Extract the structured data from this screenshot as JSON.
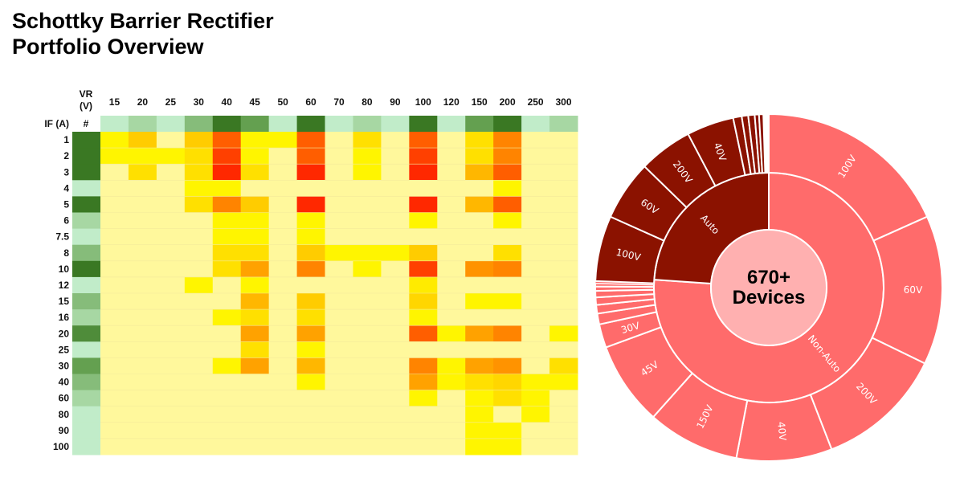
{
  "title": {
    "line1": "Schottky Barrier Rectifier",
    "line2": "Portfolio Overview"
  },
  "chart_data": [
    {
      "type": "heatmap",
      "corner_label_top": "VR\n(V)",
      "vr_label_line1": "VR",
      "vr_label_line2": "(V)",
      "if_label": "IF (A)",
      "count_label": "#",
      "columns": [
        "15",
        "20",
        "25",
        "30",
        "40",
        "45",
        "50",
        "60",
        "70",
        "80",
        "90",
        "100",
        "120",
        "150",
        "200",
        "250",
        "300"
      ],
      "rows": [
        "1",
        "2",
        "3",
        "4",
        "5",
        "6",
        "7.5",
        "8",
        "10",
        "12",
        "15",
        "16",
        "20",
        "25",
        "30",
        "40",
        "60",
        "80",
        "90",
        "100"
      ],
      "intensity_scale": {
        "min": 0,
        "max": 8,
        "colors": [
          "#fff89c",
          "#fff500",
          "#ffe000",
          "#ffcc00",
          "#ffa200",
          "#ff8400",
          "#ff5e00",
          "#ff4000",
          "#ff2800"
        ]
      },
      "count_scale": {
        "min": 0,
        "max": 3,
        "colors": [
          "#c1ecc9",
          "#a7d7a3",
          "#64a050",
          "#3a7823"
        ]
      },
      "column_counts": [
        0,
        1,
        0,
        1.5,
        3,
        2,
        0,
        3,
        0,
        1,
        0,
        3,
        0,
        2,
        3,
        0,
        1
      ],
      "row_counts": [
        3,
        3,
        3,
        0,
        3,
        1,
        0,
        1.5,
        3,
        0,
        1.5,
        1,
        2.5,
        0,
        2,
        1.5,
        1,
        0,
        0,
        0
      ],
      "values": [
        [
          1,
          3,
          0,
          3,
          6,
          1,
          1,
          6,
          0,
          2,
          0,
          6,
          0,
          2,
          5,
          0,
          0
        ],
        [
          1,
          1,
          1,
          2,
          7,
          1,
          0,
          6,
          0,
          1,
          0,
          7,
          0,
          2,
          5,
          0,
          0
        ],
        [
          0,
          2,
          0,
          2,
          8,
          2,
          0,
          8,
          0,
          1,
          0,
          8,
          0,
          3.5,
          6,
          0,
          0
        ],
        [
          0,
          0,
          0,
          1,
          1,
          0,
          0,
          0,
          0,
          0,
          0,
          0,
          0,
          0,
          1,
          0,
          0
        ],
        [
          0,
          0,
          0,
          2,
          5,
          3,
          0,
          8,
          0,
          0,
          0,
          8,
          0,
          3.5,
          6,
          0,
          0
        ],
        [
          0,
          0,
          0,
          0,
          1,
          1,
          0,
          1,
          0,
          0,
          0,
          1,
          0,
          0,
          1,
          0,
          0
        ],
        [
          0,
          0,
          0,
          0,
          1,
          1,
          0,
          1,
          0,
          0,
          0,
          0,
          0,
          0,
          0,
          0,
          0
        ],
        [
          0,
          0,
          0,
          0,
          2,
          2,
          0,
          3,
          1,
          1,
          1,
          3,
          0,
          0,
          2,
          0,
          0
        ],
        [
          0,
          0,
          0,
          0,
          2,
          4,
          0,
          5,
          0,
          1,
          0,
          7,
          0,
          4.5,
          5,
          0,
          0
        ],
        [
          0,
          0,
          0,
          1,
          0,
          1,
          0,
          0,
          0,
          0,
          0,
          1.5,
          0,
          0,
          0,
          0,
          0
        ],
        [
          0,
          0,
          0,
          0,
          0,
          3.5,
          0,
          3,
          0,
          0,
          0,
          2.5,
          0,
          1,
          1,
          0,
          0
        ],
        [
          0,
          0,
          0,
          0,
          1,
          2,
          0,
          2,
          0,
          0,
          0,
          1,
          0,
          0,
          0,
          0,
          0
        ],
        [
          0,
          0,
          0,
          0,
          0,
          4,
          0,
          4,
          0,
          0,
          0,
          6,
          1,
          4,
          5,
          0,
          1
        ],
        [
          0,
          0,
          0,
          0,
          0,
          2,
          0,
          1,
          0,
          0,
          0,
          0,
          0,
          0,
          0,
          0,
          0
        ],
        [
          0,
          0,
          0,
          0,
          1,
          4,
          0,
          3.5,
          0,
          0,
          0,
          5,
          1,
          4,
          4.5,
          0,
          2
        ],
        [
          0,
          0,
          0,
          0,
          0,
          0,
          0,
          1,
          0,
          0,
          0,
          4,
          1,
          2,
          2.5,
          1,
          1
        ],
        [
          0,
          0,
          0,
          0,
          0,
          0,
          0,
          0,
          0,
          0,
          0,
          1,
          0,
          1,
          2,
          1,
          0
        ],
        [
          0,
          0,
          0,
          0,
          0,
          0,
          0,
          0,
          0,
          0,
          0,
          0,
          0,
          1,
          0,
          1,
          0
        ],
        [
          0,
          0,
          0,
          0,
          0,
          0,
          0,
          0,
          0,
          0,
          0,
          0,
          0,
          1,
          1,
          0,
          0
        ],
        [
          0,
          0,
          0,
          0,
          0,
          0,
          0,
          0,
          0,
          0,
          0,
          0,
          0,
          1,
          1,
          0,
          0
        ]
      ]
    },
    {
      "type": "sunburst",
      "center_line1": "670+",
      "center_line2": "Devices",
      "center_color": "#ffb0b0",
      "inner": [
        {
          "label": "Non-Auto",
          "share_pct": 76.1,
          "color": "#ff6b6b"
        },
        {
          "label": "Auto",
          "share_pct": 23.9,
          "color": "#8b1200"
        }
      ],
      "outer": [
        {
          "parent": "Non-Auto",
          "label": "100V",
          "share_pct": 18.3
        },
        {
          "parent": "Non-Auto",
          "label": "60V",
          "share_pct": 13.9
        },
        {
          "parent": "Non-Auto",
          "label": "200V",
          "share_pct": 11.9
        },
        {
          "parent": "Non-Auto",
          "label": "40V",
          "share_pct": 8.9
        },
        {
          "parent": "Non-Auto",
          "label": "150V",
          "share_pct": 8.6
        },
        {
          "parent": "Non-Auto",
          "label": "45V",
          "share_pct": 7.8
        },
        {
          "parent": "Non-Auto",
          "label": "30V",
          "share_pct": 2.2
        },
        {
          "parent": "Non-Auto",
          "label": "",
          "share_pct": 1.0
        },
        {
          "parent": "Non-Auto",
          "label": "",
          "share_pct": 0.8
        },
        {
          "parent": "Non-Auto",
          "label": "",
          "share_pct": 0.7
        },
        {
          "parent": "Non-Auto",
          "label": "",
          "share_pct": 0.6
        },
        {
          "parent": "Non-Auto",
          "label": "",
          "share_pct": 0.4
        },
        {
          "parent": "Non-Auto",
          "label": "",
          "share_pct": 0.3
        },
        {
          "parent": "Non-Auto",
          "label": "",
          "share_pct": 0.2
        },
        {
          "parent": "Auto",
          "label": "100V",
          "share_pct": 6.1
        },
        {
          "parent": "Auto",
          "label": "60V",
          "share_pct": 5.6
        },
        {
          "parent": "Auto",
          "label": "200V",
          "share_pct": 5.0
        },
        {
          "parent": "Auto",
          "label": "40V",
          "share_pct": 4.4
        },
        {
          "parent": "Auto",
          "label": "",
          "share_pct": 0.8
        },
        {
          "parent": "Auto",
          "label": "",
          "share_pct": 0.6
        },
        {
          "parent": "Auto",
          "label": "",
          "share_pct": 0.6
        },
        {
          "parent": "Auto",
          "label": "",
          "share_pct": 0.4
        },
        {
          "parent": "Auto",
          "label": "",
          "share_pct": 0.4
        }
      ]
    }
  ]
}
